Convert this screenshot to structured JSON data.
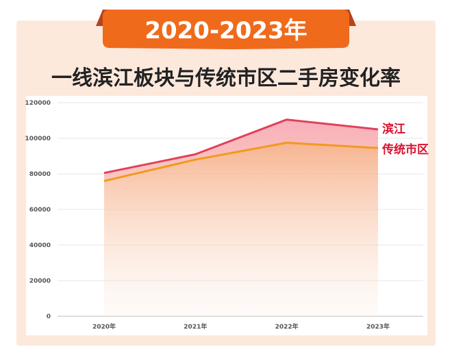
{
  "banner": {
    "text": "2020-2023年"
  },
  "heading": {
    "text": "一线滨江板块与传统市区二手房变化率"
  },
  "colors": {
    "banner_fill": "#f06a1c",
    "banner_ribbon": "#b8431a",
    "panel_bg": "#fde8dc",
    "binjiang_line": "#e0415c",
    "traditional_line": "#f19a1d",
    "label_red": "#d8112f"
  },
  "chart_data": {
    "type": "area",
    "categories": [
      "2020年",
      "2021年",
      "2022年",
      "2023年"
    ],
    "ylim": [
      0,
      120000
    ],
    "yticks": [
      "0",
      "20000",
      "40000",
      "60000",
      "80000",
      "100000",
      "120000"
    ],
    "grid": true,
    "series": [
      {
        "name": "滨江",
        "values": [
          80500,
          91000,
          110500,
          105000
        ]
      },
      {
        "name": "传统市区",
        "values": [
          76000,
          88000,
          97500,
          94500
        ]
      }
    ]
  }
}
